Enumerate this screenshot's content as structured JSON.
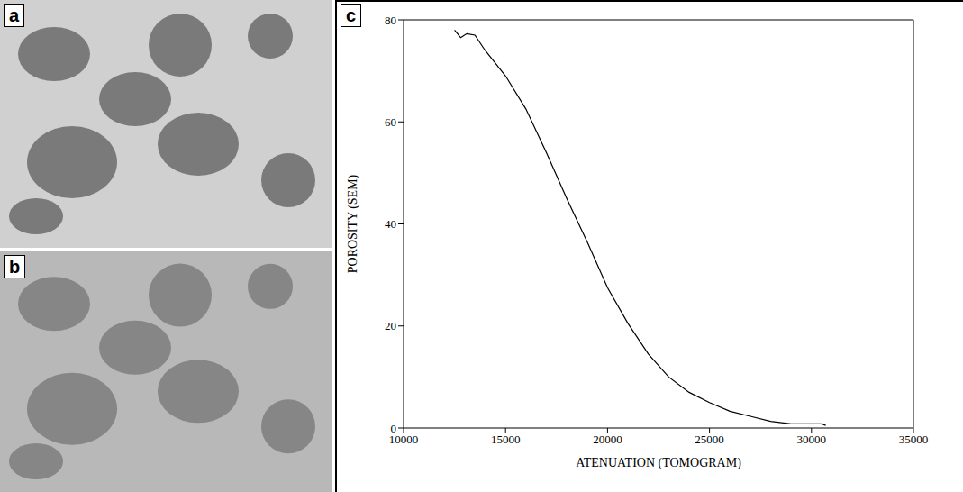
{
  "panels": [
    {
      "label": "a"
    },
    {
      "label": "b"
    }
  ],
  "chart_data": {
    "panel": "c",
    "type": "line",
    "x_label": "ATENUATION (TOMOGRAM)",
    "y_label": "POROSITY (SEM)",
    "x": [
      12500,
      12800,
      13100,
      13500,
      14000,
      15000,
      16000,
      17000,
      18000,
      19000,
      20000,
      21000,
      22000,
      23000,
      24000,
      25000,
      26000,
      27000,
      28000,
      29000,
      30000,
      30500,
      30700
    ],
    "values": [
      78,
      76.5,
      77.3,
      77,
      74,
      69,
      62.5,
      54,
      45,
      36.5,
      27.5,
      20.5,
      14.5,
      10,
      7,
      5,
      3.3,
      2.3,
      1.3,
      0.8,
      0.8,
      0.8,
      0.5
    ],
    "color": "#000000",
    "xlim": [
      10000,
      35000
    ],
    "xticks": [
      10000,
      15000,
      20000,
      25000,
      30000,
      35000
    ],
    "ylim": [
      0,
      80
    ],
    "yticks": [
      0,
      20,
      40,
      60,
      80
    ],
    "grid": false
  }
}
